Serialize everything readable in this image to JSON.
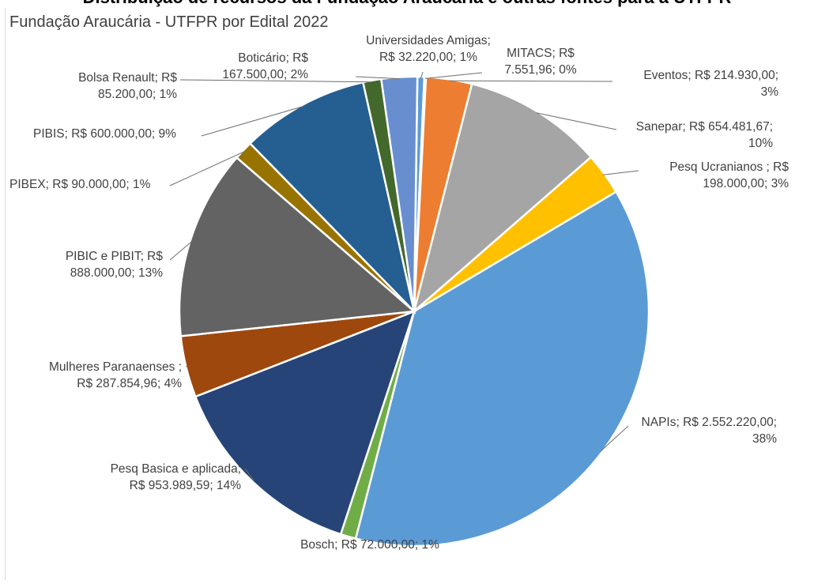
{
  "chart_data": {
    "type": "pie",
    "title": "Fundação Araucária - UTFPR por Edital 2022",
    "top_cut_text": "Distribuição de recursos da Fundação Araucária e outras fontes para a UTFPR",
    "slices": [
      {
        "name": "Universidades Amigas",
        "value": 32220.0,
        "label_lines": [
          "Universidades Amigas;",
          "R$ 32.220,00; 1%"
        ],
        "color": "#5b9bd5"
      },
      {
        "name": "MITACS",
        "value": 7551.96,
        "label_lines": [
          "MITACS; R$",
          "7.551,96; 0%"
        ],
        "color": "#a5a5a5"
      },
      {
        "name": "Eventos",
        "value": 214930.0,
        "label_lines": [
          "Eventos; R$ 214.930,00;",
          "3%"
        ],
        "color": "#ed7d31"
      },
      {
        "name": "Sanepar",
        "value": 654481.67,
        "label_lines": [
          "Sanepar; R$ 654.481,67;",
          "10%"
        ],
        "color": "#a5a5a5"
      },
      {
        "name": "Pesq Ucranianos",
        "value": 198000.0,
        "label_lines": [
          "Pesq Ucranianos ; R$",
          "198.000,00; 3%"
        ],
        "color": "#ffc000"
      },
      {
        "name": "NAPIs",
        "value": 2552220.0,
        "label_lines": [
          "NAPIs; R$ 2.552.220,00;",
          "38%"
        ],
        "color": "#5b9bd5"
      },
      {
        "name": "Bosch",
        "value": 72000.0,
        "label_lines": [
          "Bosch; R$ 72.000,00; 1%"
        ],
        "color": "#70ad47"
      },
      {
        "name": "Pesq Basica e aplicada",
        "value": 953989.59,
        "label_lines": [
          "Pesq Basica e aplicada;",
          "R$ 953.989,59; 14%"
        ],
        "color": "#264478"
      },
      {
        "name": "Mulheres Paranaenses",
        "value": 287854.96,
        "label_lines": [
          "Mulheres Paranaenses ;",
          "R$ 287.854,96; 4%"
        ],
        "color": "#9e480e"
      },
      {
        "name": "PIBIC e PIBIT",
        "value": 888000.0,
        "label_lines": [
          "PIBIC e PIBIT; R$",
          "888.000,00; 13%"
        ],
        "color": "#636363"
      },
      {
        "name": "PIBEX",
        "value": 90000.0,
        "label_lines": [
          "PIBEX; R$ 90.000,00; 1%"
        ],
        "color": "#997300"
      },
      {
        "name": "PIBIS",
        "value": 600000.0,
        "label_lines": [
          "PIBIS; R$ 600.000,00; 9%"
        ],
        "color": "#255e91"
      },
      {
        "name": "Bolsa Renault",
        "value": 85200.0,
        "label_lines": [
          "Bolsa Renault; R$",
          "85.200,00; 1%"
        ],
        "color": "#43682b"
      },
      {
        "name": "Boticário",
        "value": 167500.0,
        "label_lines": [
          "Boticário; R$",
          "167.500,00; 2%"
        ],
        "color": "#698ed0"
      }
    ]
  }
}
